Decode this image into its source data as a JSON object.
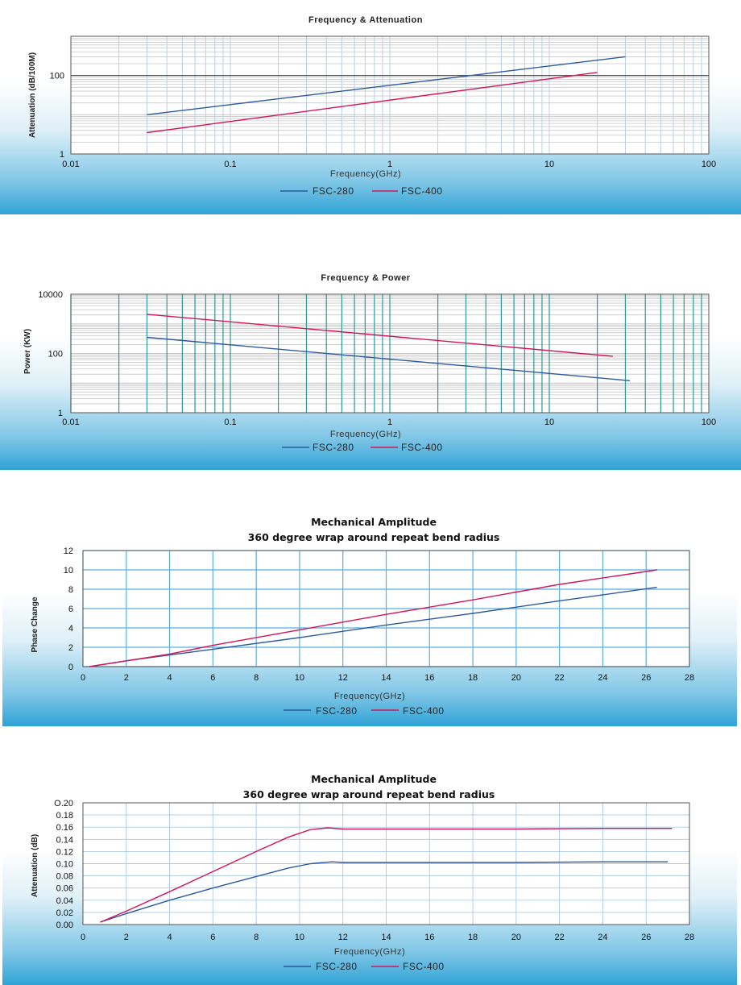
{
  "colors": {
    "fsc280": "#2b5a9e",
    "fsc400": "#d4145a",
    "grid_log": "#b9cfe6",
    "grid_power": "#2a9a9a",
    "grid_linear": "#5aaee0",
    "frame": "#555555"
  },
  "chart_data": [
    {
      "type": "line",
      "title": "Frequency & Attenuation",
      "xlabel": "Frequency(GHz)",
      "ylabel": "Attenuation   (dB/100M)",
      "x_scale": "log",
      "y_scale": "log",
      "xlim": [
        0.01,
        100
      ],
      "ylim": [
        1,
        1000
      ],
      "x_ticks": [
        "0.01",
        "0.1",
        "1",
        "10",
        "100"
      ],
      "y_ticks": [
        {
          "value": 1,
          "label": "1"
        },
        {
          "value": 100,
          "label": "100"
        }
      ],
      "legend": [
        "FSC-280",
        "FSC-400"
      ],
      "series": [
        {
          "name": "FSC-280",
          "x": [
            0.03,
            30
          ],
          "y": [
            10,
            300
          ]
        },
        {
          "name": "FSC-400",
          "x": [
            0.03,
            20
          ],
          "y": [
            3.5,
            120
          ]
        }
      ]
    },
    {
      "type": "line",
      "title": "Frequency & Power",
      "xlabel": "Frequency(GHz)",
      "ylabel": "Power (KW)",
      "x_scale": "log",
      "y_scale": "log",
      "xlim": [
        0.01,
        100
      ],
      "ylim": [
        1,
        10000
      ],
      "x_ticks": [
        "0.01",
        "0.1",
        "1",
        "10",
        "100"
      ],
      "y_ticks": [
        {
          "value": 1,
          "label": "1"
        },
        {
          "value": 100,
          "label": "100"
        },
        {
          "value": 10000,
          "label": "10000"
        }
      ],
      "legend": [
        "FSC-280",
        "FSC-400"
      ],
      "series": [
        {
          "name": "FSC-280",
          "x": [
            0.03,
            32
          ],
          "y": [
            350,
            12
          ]
        },
        {
          "name": "FSC-400",
          "x": [
            0.03,
            25
          ],
          "y": [
            2100,
            80
          ]
        }
      ]
    },
    {
      "type": "line",
      "title": "Mechanical  Amplitude",
      "subtitle": "360 degree wrap around repeat bend radius",
      "xlabel": "Frequency(GHz)",
      "ylabel": "Phase Change",
      "xlim": [
        0,
        28
      ],
      "ylim": [
        0,
        12
      ],
      "x_ticks": [
        "0",
        "2",
        "4",
        "6",
        "8",
        "10",
        "12",
        "14",
        "16",
        "18",
        "20",
        "22",
        "24",
        "26",
        "28"
      ],
      "y_ticks": [
        {
          "value": 0,
          "label": "0"
        },
        {
          "value": 2,
          "label": "2"
        },
        {
          "value": 4,
          "label": "4"
        },
        {
          "value": 6,
          "label": "6"
        },
        {
          "value": 8,
          "label": "8"
        },
        {
          "value": 10,
          "label": "10"
        },
        {
          "value": 12,
          "label": "12"
        }
      ],
      "legend": [
        "FSC-280",
        "FSC-400"
      ],
      "series": [
        {
          "name": "FSC-280",
          "x": [
            0.3,
            2,
            4,
            6,
            10,
            14,
            18,
            22,
            26.5
          ],
          "y": [
            0,
            0.6,
            1.2,
            1.8,
            3.0,
            4.3,
            5.5,
            6.8,
            8.2
          ]
        },
        {
          "name": "FSC-400",
          "x": [
            0.3,
            2,
            4,
            6,
            10,
            14,
            18,
            22,
            26.5
          ],
          "y": [
            0,
            0.6,
            1.3,
            2.2,
            3.8,
            5.4,
            6.9,
            8.5,
            10.0
          ]
        }
      ]
    },
    {
      "type": "line",
      "title": "Mechanical  Amplitude",
      "subtitle": "360 degree wrap around repeat bend radius",
      "xlabel": "Frequency(GHz)",
      "ylabel": "Attenuation (dB)",
      "xlim": [
        0,
        28
      ],
      "ylim": [
        0,
        0.2
      ],
      "x_ticks": [
        "0",
        "2",
        "4",
        "6",
        "8",
        "10",
        "12",
        "14",
        "16",
        "18",
        "20",
        "22",
        "24",
        "26",
        "28"
      ],
      "y_ticks": [
        {
          "value": 0,
          "label": "0.00"
        },
        {
          "value": 0.02,
          "label": "0.02"
        },
        {
          "value": 0.04,
          "label": "0.04"
        },
        {
          "value": 0.06,
          "label": "0.06"
        },
        {
          "value": 0.08,
          "label": "0.08"
        },
        {
          "value": 0.1,
          "label": "0.10"
        },
        {
          "value": 0.12,
          "label": "0.12"
        },
        {
          "value": 0.14,
          "label": "0.14"
        },
        {
          "value": 0.16,
          "label": "0.16"
        },
        {
          "value": 0.18,
          "label": "0.18"
        },
        {
          "value": 0.2,
          "label": "O.20"
        }
      ],
      "legend": [
        "FSC-280",
        "FSC-400"
      ],
      "series": [
        {
          "name": "FSC-280",
          "x": [
            0.8,
            2,
            4,
            6,
            8,
            9.5,
            10.5,
            11.5,
            12,
            16,
            20,
            24,
            27
          ],
          "y": [
            0.004,
            0.018,
            0.04,
            0.06,
            0.079,
            0.093,
            0.1,
            0.103,
            0.102,
            0.102,
            0.102,
            0.103,
            0.103
          ]
        },
        {
          "name": "FSC-400",
          "x": [
            0.8,
            2,
            4,
            6,
            8,
            9.5,
            10.5,
            11.3,
            12,
            16,
            20,
            24,
            27.2
          ],
          "y": [
            0.004,
            0.022,
            0.054,
            0.087,
            0.12,
            0.144,
            0.156,
            0.159,
            0.157,
            0.157,
            0.157,
            0.158,
            0.158
          ]
        }
      ]
    }
  ]
}
